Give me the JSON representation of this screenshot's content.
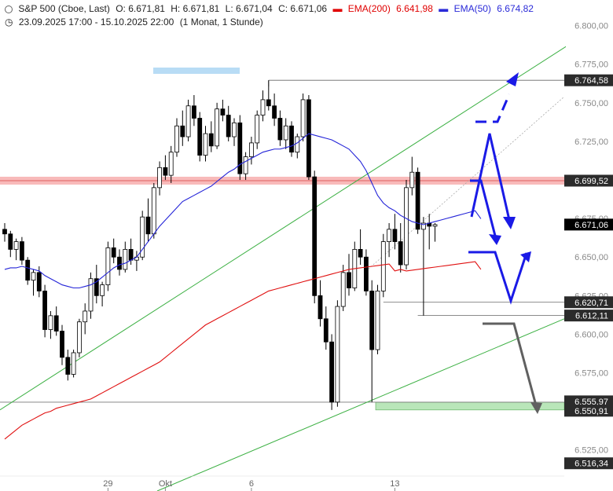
{
  "header": {
    "symbol": "S&P 500 (Cboe, Last)",
    "open": "O: 6.671,81",
    "high": "H: 6.671,81",
    "low": "L: 6.671,04",
    "close": "C: 6.671,06",
    "ema200_label": "EMA(200)",
    "ema200_value": "6.641,98",
    "ema50_label": "EMA(50)",
    "ema50_value": "6.674,82",
    "range": "23.09.2025 17:00 - 15.10.2025 22:00",
    "period": "(1 Monat, 1 Stunde)"
  },
  "colors": {
    "ema200": "#e01010",
    "ema50": "#2424d8",
    "arrow_blue": "#1a1ae6",
    "arrow_gray": "#606060",
    "trend_green": "#3cb043",
    "resistance_band": "#f7b3b3",
    "support_band": "#b9e6b9",
    "marker_blue": "#b8dcf5"
  },
  "chart_data": {
    "type": "candlestick",
    "title": "S&P 500 (Cboe, Last)",
    "ylim": [
      6505,
      6810
    ],
    "y_ticks": [
      "6.800,00",
      "6.775,00",
      "6.750,00",
      "6.725,00",
      "6.700,00",
      "6.675,00",
      "6.650,00",
      "6.625,00",
      "6.600,00",
      "6.575,00",
      "6.550,00",
      "6.525,00"
    ],
    "x_ticks": [
      "29",
      "Okt",
      "6",
      "13"
    ],
    "x_tick_index": [
      18,
      28,
      43,
      68
    ],
    "price_levels": [
      {
        "label": "6.764,58",
        "value": 6764.58,
        "style": "dark"
      },
      {
        "label": "6.699,52",
        "value": 6699.52,
        "style": "dark"
      },
      {
        "label": "6.671,06",
        "value": 6671.06,
        "style": "dark"
      },
      {
        "label": "6.620,71",
        "value": 6620.71,
        "style": "dark"
      },
      {
        "label": "6.612,11",
        "value": 6612.11,
        "style": "dark"
      },
      {
        "label": "6.555,97",
        "value": 6555.97,
        "style": "dark"
      },
      {
        "label": "6.550,91",
        "value": 6550.91,
        "style": "dark"
      },
      {
        "label": "6.516,34",
        "value": 6516.34,
        "style": "dark"
      }
    ],
    "series": [
      {
        "name": "EMA(200)",
        "color": "#e01010",
        "values": [
          6532,
          6535,
          6538,
          6541,
          6543,
          6545,
          6547,
          6549,
          6550,
          6552,
          6553,
          6554,
          6555,
          6556,
          6557,
          6558,
          6560,
          6562,
          6564,
          6566,
          6568,
          6570,
          6572,
          6574,
          6576,
          6578,
          6580,
          6582,
          6585,
          6588,
          6591,
          6594,
          6597,
          6600,
          6603,
          6606,
          6608,
          6610,
          6612,
          6614,
          6616,
          6618,
          6620,
          6622,
          6624,
          6626,
          6628,
          6629,
          6630,
          6631,
          6632,
          6633,
          6634,
          6635,
          6636,
          6637,
          6638,
          6639,
          6640,
          6641,
          6642,
          6642.5,
          6643,
          6643.5,
          6644,
          6644.5,
          6645,
          6645.5,
          6641,
          6642,
          6641,
          6641.5,
          6642,
          6642.5,
          6643,
          6643.5,
          6644,
          6644.5,
          6645,
          6645.5,
          6646,
          6646.5,
          6647,
          6641.98
        ]
      },
      {
        "name": "EMA(50)",
        "color": "#2424d8",
        "values": [
          6642,
          6643,
          6643,
          6644,
          6643,
          6642,
          6641,
          6638,
          6636,
          6634,
          6632,
          6631,
          6630,
          6630,
          6631,
          6632,
          6634,
          6637,
          6640,
          6643,
          6645,
          6646,
          6648,
          6650,
          6655,
          6660,
          6665,
          6670,
          6674,
          6678,
          6682,
          6686,
          6688,
          6690,
          6692,
          6694,
          6696,
          6699,
          6702,
          6705,
          6707,
          6710,
          6712,
          6714,
          6716,
          6718,
          6719,
          6720,
          6720,
          6721,
          6722,
          6724,
          6727,
          6730,
          6729,
          6728,
          6727,
          6726,
          6724,
          6722,
          6720,
          6716,
          6712,
          6706,
          6698,
          6690,
          6685,
          6682,
          6680,
          6677,
          6675,
          6673,
          6672,
          6671,
          6672,
          6673,
          6674,
          6675,
          6676,
          6677,
          6678,
          6679,
          6680,
          6674.82
        ]
      }
    ],
    "candles": [
      {
        "o": 6668,
        "h": 6672,
        "l": 6660,
        "c": 6665
      },
      {
        "o": 6665,
        "h": 6667,
        "l": 6650,
        "c": 6655
      },
      {
        "o": 6655,
        "h": 6662,
        "l": 6648,
        "c": 6660
      },
      {
        "o": 6660,
        "h": 6663,
        "l": 6645,
        "c": 6648
      },
      {
        "o": 6648,
        "h": 6650,
        "l": 6632,
        "c": 6635
      },
      {
        "o": 6635,
        "h": 6642,
        "l": 6625,
        "c": 6640
      },
      {
        "o": 6640,
        "h": 6644,
        "l": 6624,
        "c": 6628
      },
      {
        "o": 6628,
        "h": 6632,
        "l": 6598,
        "c": 6603
      },
      {
        "o": 6603,
        "h": 6615,
        "l": 6597,
        "c": 6612
      },
      {
        "o": 6612,
        "h": 6618,
        "l": 6599,
        "c": 6602
      },
      {
        "o": 6602,
        "h": 6606,
        "l": 6580,
        "c": 6585
      },
      {
        "o": 6585,
        "h": 6590,
        "l": 6570,
        "c": 6574
      },
      {
        "o": 6574,
        "h": 6590,
        "l": 6572,
        "c": 6588
      },
      {
        "o": 6588,
        "h": 6610,
        "l": 6585,
        "c": 6608
      },
      {
        "o": 6608,
        "h": 6620,
        "l": 6600,
        "c": 6615
      },
      {
        "o": 6615,
        "h": 6640,
        "l": 6610,
        "c": 6636
      },
      {
        "o": 6636,
        "h": 6645,
        "l": 6620,
        "c": 6625
      },
      {
        "o": 6625,
        "h": 6634,
        "l": 6618,
        "c": 6632
      },
      {
        "o": 6632,
        "h": 6660,
        "l": 6628,
        "c": 6656
      },
      {
        "o": 6656,
        "h": 6662,
        "l": 6646,
        "c": 6650
      },
      {
        "o": 6650,
        "h": 6655,
        "l": 6638,
        "c": 6642
      },
      {
        "o": 6642,
        "h": 6660,
        "l": 6640,
        "c": 6655
      },
      {
        "o": 6655,
        "h": 6662,
        "l": 6645,
        "c": 6648
      },
      {
        "o": 6648,
        "h": 6654,
        "l": 6641,
        "c": 6650
      },
      {
        "o": 6650,
        "h": 6680,
        "l": 6648,
        "c": 6676
      },
      {
        "o": 6676,
        "h": 6688,
        "l": 6660,
        "c": 6665
      },
      {
        "o": 6665,
        "h": 6698,
        "l": 6662,
        "c": 6695
      },
      {
        "o": 6695,
        "h": 6712,
        "l": 6690,
        "c": 6708
      },
      {
        "o": 6708,
        "h": 6716,
        "l": 6700,
        "c": 6703
      },
      {
        "o": 6703,
        "h": 6722,
        "l": 6698,
        "c": 6718
      },
      {
        "o": 6718,
        "h": 6740,
        "l": 6715,
        "c": 6735
      },
      {
        "o": 6735,
        "h": 6745,
        "l": 6722,
        "c": 6728
      },
      {
        "o": 6728,
        "h": 6752,
        "l": 6725,
        "c": 6748
      },
      {
        "o": 6748,
        "h": 6755,
        "l": 6735,
        "c": 6740
      },
      {
        "o": 6740,
        "h": 6744,
        "l": 6712,
        "c": 6716
      },
      {
        "o": 6716,
        "h": 6735,
        "l": 6712,
        "c": 6730
      },
      {
        "o": 6730,
        "h": 6738,
        "l": 6718,
        "c": 6722
      },
      {
        "o": 6722,
        "h": 6750,
        "l": 6720,
        "c": 6746
      },
      {
        "o": 6746,
        "h": 6752,
        "l": 6738,
        "c": 6742
      },
      {
        "o": 6742,
        "h": 6748,
        "l": 6725,
        "c": 6728
      },
      {
        "o": 6728,
        "h": 6740,
        "l": 6722,
        "c": 6737
      },
      {
        "o": 6737,
        "h": 6742,
        "l": 6700,
        "c": 6704
      },
      {
        "o": 6704,
        "h": 6718,
        "l": 6700,
        "c": 6715
      },
      {
        "o": 6715,
        "h": 6728,
        "l": 6710,
        "c": 6724
      },
      {
        "o": 6724,
        "h": 6745,
        "l": 6720,
        "c": 6742
      },
      {
        "o": 6742,
        "h": 6758,
        "l": 6738,
        "c": 6752
      },
      {
        "o": 6752,
        "h": 6764.58,
        "l": 6745,
        "c": 6748
      },
      {
        "o": 6748,
        "h": 6756,
        "l": 6735,
        "c": 6740
      },
      {
        "o": 6740,
        "h": 6745,
        "l": 6722,
        "c": 6726
      },
      {
        "o": 6726,
        "h": 6740,
        "l": 6720,
        "c": 6735
      },
      {
        "o": 6735,
        "h": 6738,
        "l": 6715,
        "c": 6718
      },
      {
        "o": 6718,
        "h": 6730,
        "l": 6714,
        "c": 6728
      },
      {
        "o": 6728,
        "h": 6756,
        "l": 6725,
        "c": 6752
      },
      {
        "o": 6752,
        "h": 6755,
        "l": 6700,
        "c": 6702
      },
      {
        "o": 6702,
        "h": 6706,
        "l": 6620,
        "c": 6625
      },
      {
        "o": 6625,
        "h": 6635,
        "l": 6605,
        "c": 6610
      },
      {
        "o": 6610,
        "h": 6618,
        "l": 6590,
        "c": 6595
      },
      {
        "o": 6595,
        "h": 6600,
        "l": 6550.91,
        "c": 6556
      },
      {
        "o": 6556,
        "h": 6622,
        "l": 6553,
        "c": 6618
      },
      {
        "o": 6618,
        "h": 6645,
        "l": 6615,
        "c": 6640
      },
      {
        "o": 6640,
        "h": 6652,
        "l": 6625,
        "c": 6630
      },
      {
        "o": 6630,
        "h": 6660,
        "l": 6628,
        "c": 6655
      },
      {
        "o": 6655,
        "h": 6668,
        "l": 6645,
        "c": 6650
      },
      {
        "o": 6650,
        "h": 6655,
        "l": 6625,
        "c": 6628
      },
      {
        "o": 6628,
        "h": 6635,
        "l": 6555.97,
        "c": 6590
      },
      {
        "o": 6590,
        "h": 6632,
        "l": 6587,
        "c": 6628
      },
      {
        "o": 6628,
        "h": 6665,
        "l": 6624,
        "c": 6660
      },
      {
        "o": 6660,
        "h": 6672,
        "l": 6650,
        "c": 6668
      },
      {
        "o": 6668,
        "h": 6678,
        "l": 6655,
        "c": 6660
      },
      {
        "o": 6660,
        "h": 6672,
        "l": 6640,
        "c": 6645
      },
      {
        "o": 6645,
        "h": 6700,
        "l": 6642,
        "c": 6695
      },
      {
        "o": 6695,
        "h": 6715,
        "l": 6690,
        "c": 6705
      },
      {
        "o": 6705,
        "h": 6708,
        "l": 6665,
        "c": 6668
      },
      {
        "o": 6668,
        "h": 6676,
        "l": 6612.11,
        "c": 6672
      },
      {
        "o": 6672,
        "h": 6678,
        "l": 6655,
        "c": 6670
      },
      {
        "o": 6670,
        "h": 6672,
        "l": 6660,
        "c": 6671.06
      }
    ]
  }
}
